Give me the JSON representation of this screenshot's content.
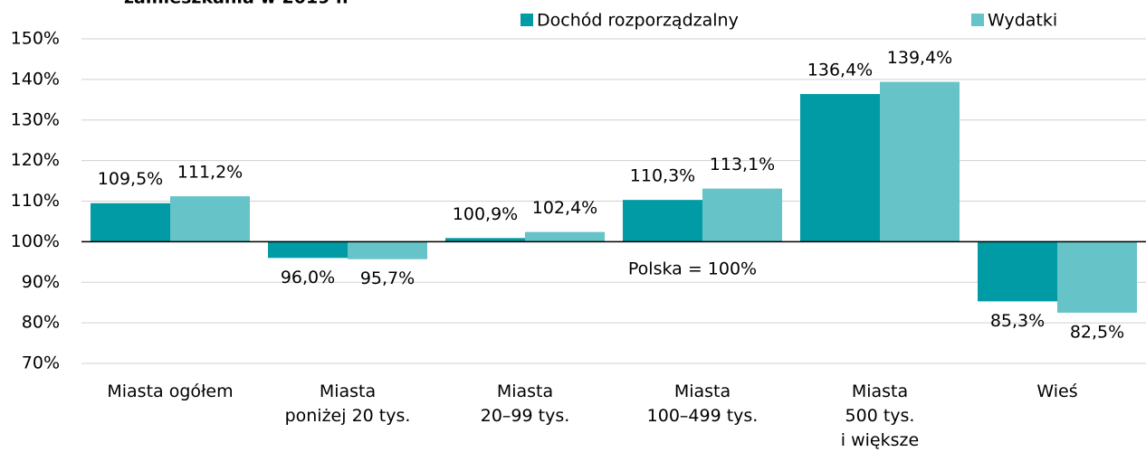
{
  "chart_data": {
    "type": "bar",
    "title": "zamieszkania w 2019 r.",
    "annotation": "Polska = 100%",
    "categories": [
      "Miasta ogółem",
      "Miasta\nponiżej 20 tys.",
      "Miasta\n20–99 tys.",
      "Miasta\n100–499 tys.",
      "Miasta\n500 tys.\ni większe",
      "Wieś"
    ],
    "baseline": 100,
    "series": [
      {
        "name": "Dochód rozporządzalny",
        "color": "#009ba4",
        "values": [
          109.5,
          96.0,
          100.9,
          110.3,
          136.4,
          85.3
        ],
        "value_labels": [
          "109,5%",
          "96,0%",
          "100,9%",
          "110,3%",
          "136,4%",
          "85,3%"
        ]
      },
      {
        "name": "Wydatki",
        "color": "#66c3c8",
        "values": [
          111.2,
          95.7,
          102.4,
          113.1,
          139.4,
          82.5
        ],
        "value_labels": [
          "111,2%",
          "95,7%",
          "102,4%",
          "113,1%",
          "139,4%",
          "82,5%"
        ]
      }
    ],
    "ylim": [
      70,
      150
    ],
    "yticks": [
      {
        "value": 70,
        "label": "70%"
      },
      {
        "value": 80,
        "label": "80%"
      },
      {
        "value": 90,
        "label": "90%"
      },
      {
        "value": 100,
        "label": "100%"
      },
      {
        "value": 110,
        "label": "110%"
      },
      {
        "value": 120,
        "label": "120%"
      },
      {
        "value": 130,
        "label": "130%"
      },
      {
        "value": 140,
        "label": "140%"
      },
      {
        "value": 150,
        "label": "150%"
      }
    ],
    "grid": true,
    "legend": "top"
  }
}
